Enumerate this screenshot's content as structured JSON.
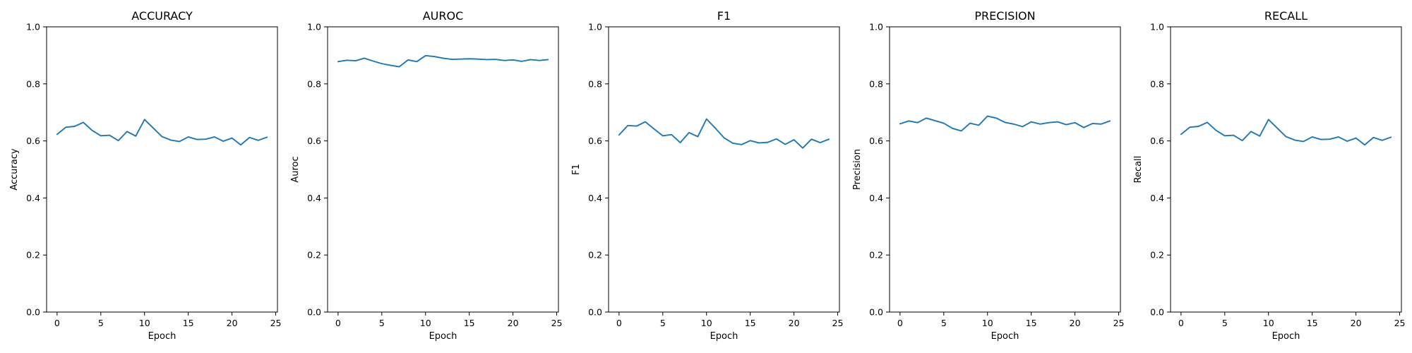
{
  "colors": {
    "series": "#1f77b4",
    "axes": "#000000",
    "background": "#ffffff"
  },
  "chart_data": [
    {
      "type": "line",
      "title": "ACCURACY",
      "xlabel": "Epoch",
      "ylabel": "Accuracy",
      "xlim": [
        -1.2,
        25.2
      ],
      "ylim": [
        0.0,
        1.0
      ],
      "xticks": [
        0,
        5,
        10,
        15,
        20,
        25
      ],
      "yticks": [
        0.0,
        0.2,
        0.4,
        0.6,
        0.8,
        1.0
      ],
      "grid": false,
      "x": [
        0,
        1,
        2,
        3,
        4,
        5,
        6,
        7,
        8,
        9,
        10,
        11,
        12,
        13,
        14,
        15,
        16,
        17,
        18,
        19,
        20,
        21,
        22,
        23,
        24
      ],
      "series": [
        {
          "values": [
            0.623,
            0.648,
            0.651,
            0.665,
            0.637,
            0.618,
            0.62,
            0.601,
            0.633,
            0.617,
            0.675,
            0.645,
            0.615,
            0.603,
            0.598,
            0.614,
            0.605,
            0.606,
            0.614,
            0.599,
            0.61,
            0.586,
            0.612,
            0.602,
            0.613
          ]
        }
      ]
    },
    {
      "type": "line",
      "title": "AUROC",
      "xlabel": "Epoch",
      "ylabel": "Auroc",
      "xlim": [
        -1.2,
        25.2
      ],
      "ylim": [
        0.0,
        1.0
      ],
      "xticks": [
        0,
        5,
        10,
        15,
        20,
        25
      ],
      "yticks": [
        0.0,
        0.2,
        0.4,
        0.6,
        0.8,
        1.0
      ],
      "grid": false,
      "x": [
        0,
        1,
        2,
        3,
        4,
        5,
        6,
        7,
        8,
        9,
        10,
        11,
        12,
        13,
        14,
        15,
        16,
        17,
        18,
        19,
        20,
        21,
        22,
        23,
        24
      ],
      "series": [
        {
          "values": [
            0.878,
            0.883,
            0.881,
            0.89,
            0.88,
            0.871,
            0.865,
            0.86,
            0.884,
            0.878,
            0.899,
            0.896,
            0.89,
            0.886,
            0.887,
            0.888,
            0.887,
            0.885,
            0.886,
            0.882,
            0.884,
            0.879,
            0.885,
            0.882,
            0.885
          ]
        }
      ]
    },
    {
      "type": "line",
      "title": "F1",
      "xlabel": "Epoch",
      "ylabel": "F1",
      "xlim": [
        -1.2,
        25.2
      ],
      "ylim": [
        0.0,
        1.0
      ],
      "xticks": [
        0,
        5,
        10,
        15,
        20,
        25
      ],
      "yticks": [
        0.0,
        0.2,
        0.4,
        0.6,
        0.8,
        1.0
      ],
      "grid": false,
      "x": [
        0,
        1,
        2,
        3,
        4,
        5,
        6,
        7,
        8,
        9,
        10,
        11,
        12,
        13,
        14,
        15,
        16,
        17,
        18,
        19,
        20,
        21,
        22,
        23,
        24
      ],
      "series": [
        {
          "values": [
            0.621,
            0.654,
            0.652,
            0.667,
            0.642,
            0.618,
            0.622,
            0.594,
            0.629,
            0.615,
            0.677,
            0.645,
            0.611,
            0.592,
            0.587,
            0.601,
            0.593,
            0.595,
            0.607,
            0.588,
            0.604,
            0.575,
            0.606,
            0.594,
            0.606
          ]
        }
      ]
    },
    {
      "type": "line",
      "title": "PRECISION",
      "xlabel": "Epoch",
      "ylabel": "Precision",
      "xlim": [
        -1.2,
        25.2
      ],
      "ylim": [
        0.0,
        1.0
      ],
      "xticks": [
        0,
        5,
        10,
        15,
        20,
        25
      ],
      "yticks": [
        0.0,
        0.2,
        0.4,
        0.6,
        0.8,
        1.0
      ],
      "grid": false,
      "x": [
        0,
        1,
        2,
        3,
        4,
        5,
        6,
        7,
        8,
        9,
        10,
        11,
        12,
        13,
        14,
        15,
        16,
        17,
        18,
        19,
        20,
        21,
        22,
        23,
        24
      ],
      "series": [
        {
          "values": [
            0.66,
            0.67,
            0.664,
            0.68,
            0.671,
            0.662,
            0.644,
            0.635,
            0.662,
            0.655,
            0.687,
            0.68,
            0.665,
            0.659,
            0.65,
            0.667,
            0.659,
            0.664,
            0.667,
            0.657,
            0.664,
            0.647,
            0.661,
            0.659,
            0.67
          ]
        }
      ]
    },
    {
      "type": "line",
      "title": "RECALL",
      "xlabel": "Epoch",
      "ylabel": "Recall",
      "xlim": [
        -1.2,
        25.2
      ],
      "ylim": [
        0.0,
        1.0
      ],
      "xticks": [
        0,
        5,
        10,
        15,
        20,
        25
      ],
      "yticks": [
        0.0,
        0.2,
        0.4,
        0.6,
        0.8,
        1.0
      ],
      "grid": false,
      "x": [
        0,
        1,
        2,
        3,
        4,
        5,
        6,
        7,
        8,
        9,
        10,
        11,
        12,
        13,
        14,
        15,
        16,
        17,
        18,
        19,
        20,
        21,
        22,
        23,
        24
      ],
      "series": [
        {
          "values": [
            0.623,
            0.648,
            0.651,
            0.665,
            0.637,
            0.618,
            0.62,
            0.601,
            0.633,
            0.617,
            0.675,
            0.645,
            0.615,
            0.603,
            0.598,
            0.614,
            0.605,
            0.606,
            0.614,
            0.599,
            0.61,
            0.586,
            0.612,
            0.602,
            0.613
          ]
        }
      ]
    }
  ]
}
